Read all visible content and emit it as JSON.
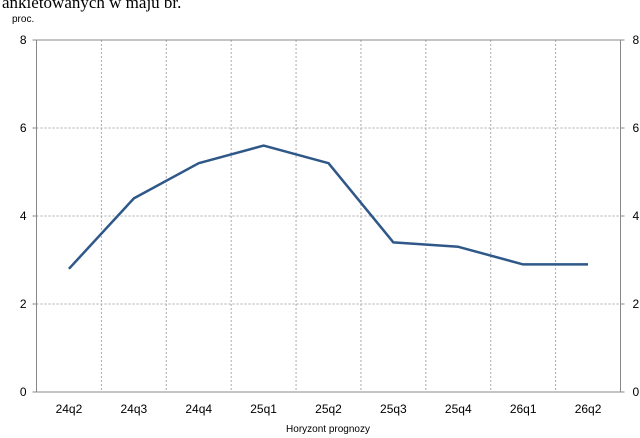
{
  "chart_data": {
    "type": "line",
    "title": "ankietowanych w maju br.",
    "y_label": "proc.",
    "x_label": "Horyzont prognozy",
    "categories": [
      "24q2",
      "24q3",
      "24q4",
      "25q1",
      "25q2",
      "25q3",
      "25q4",
      "26q1",
      "26q2"
    ],
    "series": [
      {
        "color": "#2f5889",
        "values": [
          2.8,
          4.4,
          5.2,
          5.6,
          5.2,
          3.4,
          3.3,
          2.9,
          2.9
        ]
      }
    ],
    "ylim": [
      0,
      8
    ],
    "yticks": [
      0,
      2,
      4,
      6,
      8
    ],
    "y2lim": [
      0,
      8
    ],
    "y2ticks": [
      0,
      2,
      4,
      6,
      8
    ],
    "grid": true
  }
}
